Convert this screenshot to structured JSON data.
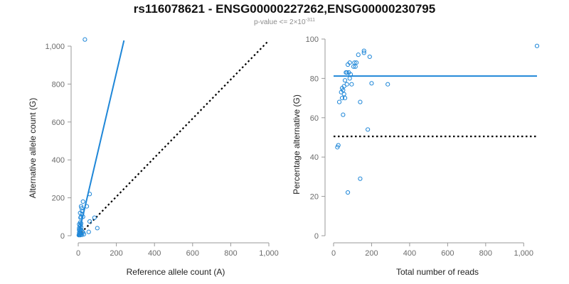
{
  "title": "rs116078621 - ENSG00000227262,ENSG00000230795",
  "subtitle": {
    "prefix": "p-value <= 2×10",
    "exponent": "-311"
  },
  "colors": {
    "points": "#1f87d8",
    "fit": "#1f87d8",
    "reference": "#000000"
  },
  "chart_data": [
    {
      "type": "scatter",
      "xlabel": "Reference allele count (A)",
      "ylabel": "Alternative allele count (G)",
      "xlim": [
        0,
        1000
      ],
      "ylim": [
        0,
        1000
      ],
      "xticks": [
        0,
        200,
        400,
        600,
        800,
        1000
      ],
      "yticks": [
        0,
        200,
        400,
        600,
        800,
        1000
      ],
      "xtick_labels": [
        "0",
        "200",
        "400",
        "600",
        "800",
        "1,000"
      ],
      "ytick_labels": [
        "0",
        "200",
        "400",
        "600",
        "800",
        "1,000"
      ],
      "points": [
        [
          35,
          1035
        ],
        [
          60,
          220
        ],
        [
          25,
          180
        ],
        [
          15,
          155
        ],
        [
          45,
          155
        ],
        [
          18,
          145
        ],
        [
          20,
          130
        ],
        [
          10,
          120
        ],
        [
          20,
          115
        ],
        [
          14,
          100
        ],
        [
          25,
          100
        ],
        [
          12,
          95
        ],
        [
          85,
          95
        ],
        [
          60,
          75
        ],
        [
          10,
          70
        ],
        [
          15,
          65
        ],
        [
          5,
          60
        ],
        [
          12,
          55
        ],
        [
          8,
          50
        ],
        [
          15,
          45
        ],
        [
          5,
          40
        ],
        [
          100,
          40
        ],
        [
          10,
          35
        ],
        [
          5,
          30
        ],
        [
          15,
          30
        ],
        [
          8,
          25
        ],
        [
          20,
          22
        ],
        [
          55,
          20
        ],
        [
          25,
          18
        ],
        [
          5,
          15
        ],
        [
          12,
          12
        ],
        [
          8,
          10
        ],
        [
          30,
          8
        ],
        [
          15,
          8
        ],
        [
          5,
          5
        ],
        [
          20,
          5
        ],
        [
          3,
          3
        ],
        [
          10,
          3
        ]
      ],
      "fit_line": {
        "x": [
          0,
          240
        ],
        "y": [
          0,
          1030
        ]
      },
      "reference_line": {
        "x": [
          0,
          1000
        ],
        "y": [
          0,
          1030
        ]
      }
    },
    {
      "type": "scatter",
      "xlabel": "Total number of reads",
      "ylabel": "Percentage alternative (G)",
      "xlim": [
        0,
        1070
      ],
      "ylim": [
        0,
        100
      ],
      "xticks": [
        0,
        200,
        400,
        600,
        800,
        1000
      ],
      "yticks": [
        0,
        20,
        40,
        60,
        80,
        100
      ],
      "xtick_labels": [
        "0",
        "200",
        "400",
        "600",
        "800",
        "1,000"
      ],
      "ytick_labels": [
        "0",
        "20",
        "40",
        "60",
        "80",
        "100"
      ],
      "points": [
        [
          1070,
          96.5
        ],
        [
          160,
          94
        ],
        [
          160,
          93
        ],
        [
          130,
          92
        ],
        [
          190,
          91
        ],
        [
          75,
          87
        ],
        [
          85,
          88
        ],
        [
          110,
          88
        ],
        [
          120,
          88
        ],
        [
          105,
          86
        ],
        [
          115,
          86
        ],
        [
          65,
          83
        ],
        [
          70,
          83
        ],
        [
          80,
          83
        ],
        [
          90,
          82
        ],
        [
          85,
          80
        ],
        [
          60,
          79
        ],
        [
          70,
          77
        ],
        [
          55,
          76
        ],
        [
          95,
          77
        ],
        [
          200,
          77.5
        ],
        [
          285,
          77
        ],
        [
          45,
          75
        ],
        [
          50,
          74
        ],
        [
          40,
          73
        ],
        [
          55,
          72
        ],
        [
          45,
          70
        ],
        [
          60,
          70
        ],
        [
          30,
          68
        ],
        [
          140,
          68
        ],
        [
          50,
          61.5
        ],
        [
          180,
          54
        ],
        [
          25,
          46
        ],
        [
          20,
          45
        ],
        [
          140,
          29
        ],
        [
          75,
          22
        ]
      ],
      "fit_line": {
        "x": [
          0,
          1070
        ],
        "y": [
          81.2,
          81.2
        ]
      },
      "reference_line": {
        "x": [
          0,
          1070
        ],
        "y": [
          50.5,
          50.5
        ]
      }
    }
  ]
}
